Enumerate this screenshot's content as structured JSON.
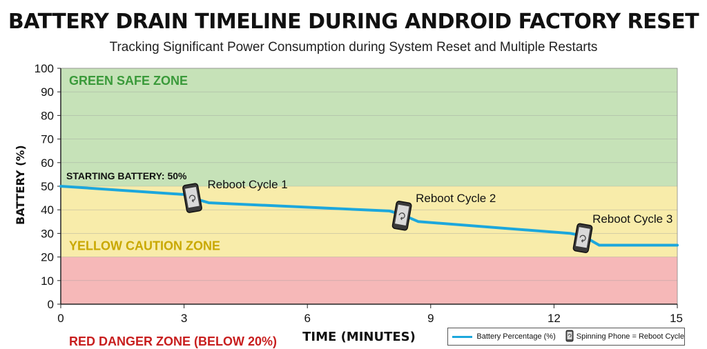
{
  "chart_data": {
    "type": "line",
    "title": "BATTERY DRAIN TIMELINE DURING ANDROID FACTORY RESET",
    "subtitle": "Tracking Significant Power Consumption during System Reset and Multiple Restarts",
    "xlabel": "TIME (MINUTES)",
    "ylabel": "BATTERY (%)",
    "xlim": [
      0,
      15
    ],
    "ylim": [
      0,
      100
    ],
    "xticks": [
      0,
      3,
      6,
      9,
      12,
      15
    ],
    "yticks": [
      0,
      10,
      20,
      30,
      40,
      50,
      60,
      70,
      80,
      90,
      100
    ],
    "zones": [
      {
        "name": "GREEN SAFE ZONE",
        "from": 50,
        "to": 100,
        "color": "#c6e2b8",
        "label_color": "#3a9a3a"
      },
      {
        "name": "YELLOW CAUTION ZONE",
        "from": 20,
        "to": 50,
        "color": "#f8ecaa",
        "label_color": "#c9a800"
      },
      {
        "name": "RED DANGER ZONE (BELOW 20%)",
        "from": 0,
        "to": 20,
        "color": "#f6b8b8",
        "label_color": "#c81e1e"
      }
    ],
    "series": [
      {
        "name": "Battery Percentage (%)",
        "color": "#1ca7dc",
        "x": [
          0,
          3.0,
          3.2,
          3.6,
          8.0,
          8.3,
          8.7,
          12.4,
          12.7,
          13.1,
          15.0
        ],
        "y": [
          50,
          46.5,
          45,
          43,
          39.5,
          38,
          35,
          30,
          29,
          25,
          25
        ]
      }
    ],
    "annotations": [
      {
        "text": "STARTING BATTERY: 50%",
        "x": 0,
        "y": 50
      },
      {
        "text": "Reboot Cycle 1",
        "x": 3.2,
        "y": 45
      },
      {
        "text": "Reboot Cycle 2",
        "x": 8.3,
        "y": 37.5
      },
      {
        "text": "Reboot Cycle 3",
        "x": 12.7,
        "y": 28
      }
    ],
    "legend": {
      "position": "bottom-right",
      "line_label": "Battery Percentage (%)",
      "icon_label": "Spinning Phone = Reboot Cycle"
    },
    "grid": true
  }
}
